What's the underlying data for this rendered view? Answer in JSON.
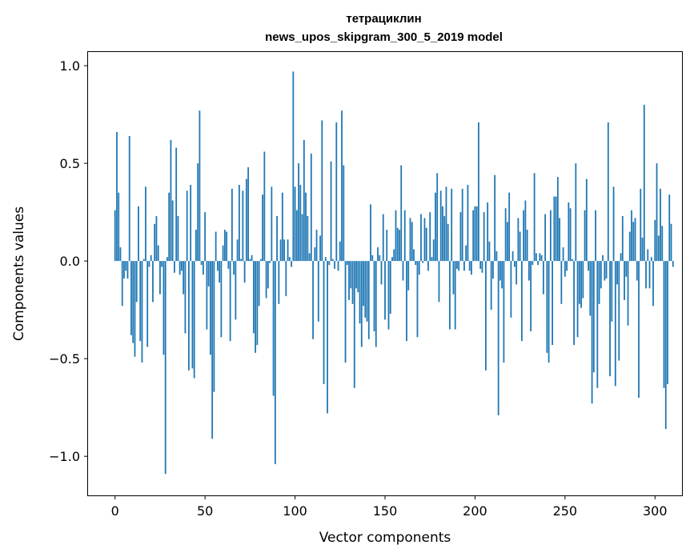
{
  "chart_data": {
    "type": "bar",
    "title": "тетрациклин",
    "subtitle": "news_upos_skipgram_300_5_2019 model",
    "xlabel": "Vector components",
    "ylabel": "Components values",
    "xlim": [
      -15,
      315
    ],
    "ylim": [
      -1.2,
      1.07
    ],
    "xticks": [
      0,
      50,
      100,
      150,
      200,
      250,
      300
    ],
    "xtick_labels": [
      "0",
      "50",
      "100",
      "150",
      "200",
      "250",
      "300"
    ],
    "yticks": [
      -1.0,
      -0.5,
      0.0,
      0.5,
      1.0
    ],
    "ytick_labels": [
      "−1.0",
      "−0.5",
      "0.0",
      "0.5",
      "1.0"
    ],
    "bar_color": "#1f77b4",
    "grid": false,
    "values": [
      0.26,
      0.66,
      0.35,
      0.07,
      -0.23,
      -0.09,
      -0.05,
      -0.09,
      0.64,
      -0.38,
      -0.42,
      -0.49,
      -0.21,
      0.28,
      -0.41,
      -0.52,
      0.01,
      0.38,
      -0.44,
      -0.03,
      0.03,
      -0.21,
      0.19,
      0.23,
      0.08,
      -0.17,
      -0.03,
      -0.48,
      -1.09,
      0.02,
      0.35,
      0.62,
      0.31,
      -0.06,
      0.58,
      0.23,
      -0.07,
      -0.05,
      -0.17,
      -0.37,
      0.36,
      -0.56,
      0.39,
      -0.55,
      -0.6,
      0.16,
      0.5,
      0.77,
      -0.02,
      -0.07,
      0.25,
      -0.35,
      -0.13,
      -0.48,
      -0.91,
      -0.67,
      0.15,
      -0.05,
      -0.11,
      -0.39,
      0.08,
      0.16,
      0.15,
      -0.04,
      -0.41,
      0.37,
      -0.07,
      -0.3,
      0.11,
      0.39,
      0.01,
      0.36,
      -0.11,
      0.42,
      0.48,
      0.01,
      0.03,
      -0.37,
      -0.47,
      -0.43,
      -0.23,
      0.01,
      0.34,
      0.56,
      -0.19,
      -0.14,
      -0.01,
      0.38,
      -0.69,
      -1.04,
      0.23,
      -0.22,
      0.11,
      0.35,
      0.11,
      -0.18,
      0.11,
      0.02,
      -0.03,
      0.97,
      0.38,
      0.26,
      0.5,
      0.39,
      0.24,
      0.62,
      0.35,
      0.23,
      0.04,
      0.55,
      -0.4,
      0.07,
      0.16,
      -0.31,
      0.13,
      0.72,
      -0.63,
      0.02,
      -0.78,
      -0.02,
      0.51,
      0.01,
      -0.04,
      0.71,
      -0.05,
      0.1,
      0.77,
      0.49,
      -0.52,
      -0.02,
      -0.2,
      -0.14,
      -0.22,
      -0.65,
      -0.14,
      -0.16,
      -0.32,
      -0.44,
      -0.23,
      -0.29,
      -0.31,
      -0.4,
      0.29,
      0.03,
      -0.36,
      -0.44,
      0.07,
      0.03,
      -0.12,
      0.24,
      -0.3,
      0.16,
      -0.35,
      -0.27,
      0.02,
      0.06,
      0.26,
      0.17,
      0.16,
      0.49,
      -0.1,
      0.26,
      -0.41,
      -0.15,
      0.22,
      0.2,
      0.06,
      -0.02,
      -0.39,
      -0.07,
      0.24,
      -0.01,
      0.22,
      0.17,
      -0.05,
      0.25,
      0.02,
      0.11,
      0.35,
      0.45,
      -0.21,
      0.36,
      0.28,
      0.23,
      0.38,
      0.19,
      -0.35,
      0.37,
      -0.17,
      -0.35,
      -0.04,
      -0.05,
      0.25,
      0.37,
      -0.05,
      0.08,
      0.39,
      -0.05,
      -0.07,
      0.26,
      0.28,
      0.28,
      0.71,
      -0.04,
      -0.06,
      0.25,
      -0.56,
      0.3,
      0.1,
      -0.25,
      -0.09,
      0.44,
      0.05,
      -0.79,
      -0.1,
      -0.14,
      -0.52,
      0.27,
      0.2,
      0.35,
      -0.29,
      0.05,
      -0.03,
      -0.12,
      0.22,
      0.15,
      -0.41,
      0.26,
      0.31,
      0.16,
      -0.1,
      -0.36,
      -0.02,
      0.45,
      0.04,
      -0.02,
      0.04,
      0.03,
      -0.17,
      0.24,
      -0.47,
      -0.52,
      0.26,
      -0.43,
      0.33,
      0.33,
      0.43,
      0.22,
      -0.22,
      0.07,
      -0.08,
      -0.05,
      0.3,
      0.27,
      0.01,
      -0.43,
      0.5,
      -0.39,
      -0.22,
      -0.24,
      -0.19,
      0.26,
      0.42,
      -0.05,
      -0.28,
      -0.73,
      -0.57,
      0.26,
      -0.65,
      -0.22,
      -0.14,
      0.03,
      -0.1,
      -0.09,
      0.71,
      -0.59,
      -0.31,
      0.38,
      -0.64,
      -0.12,
      -0.51,
      0.04,
      0.23,
      -0.2,
      -0.08,
      -0.33,
      0.15,
      0.26,
      0.2,
      0.22,
      -0.1,
      -0.7,
      0.37,
      0.12,
      0.8,
      -0.14,
      0.06,
      -0.14,
      0.02,
      -0.23,
      0.21,
      0.5,
      0.13,
      0.37,
      0.18,
      -0.65,
      -0.86,
      -0.63,
      0.34,
      0.19,
      -0.03
    ]
  }
}
